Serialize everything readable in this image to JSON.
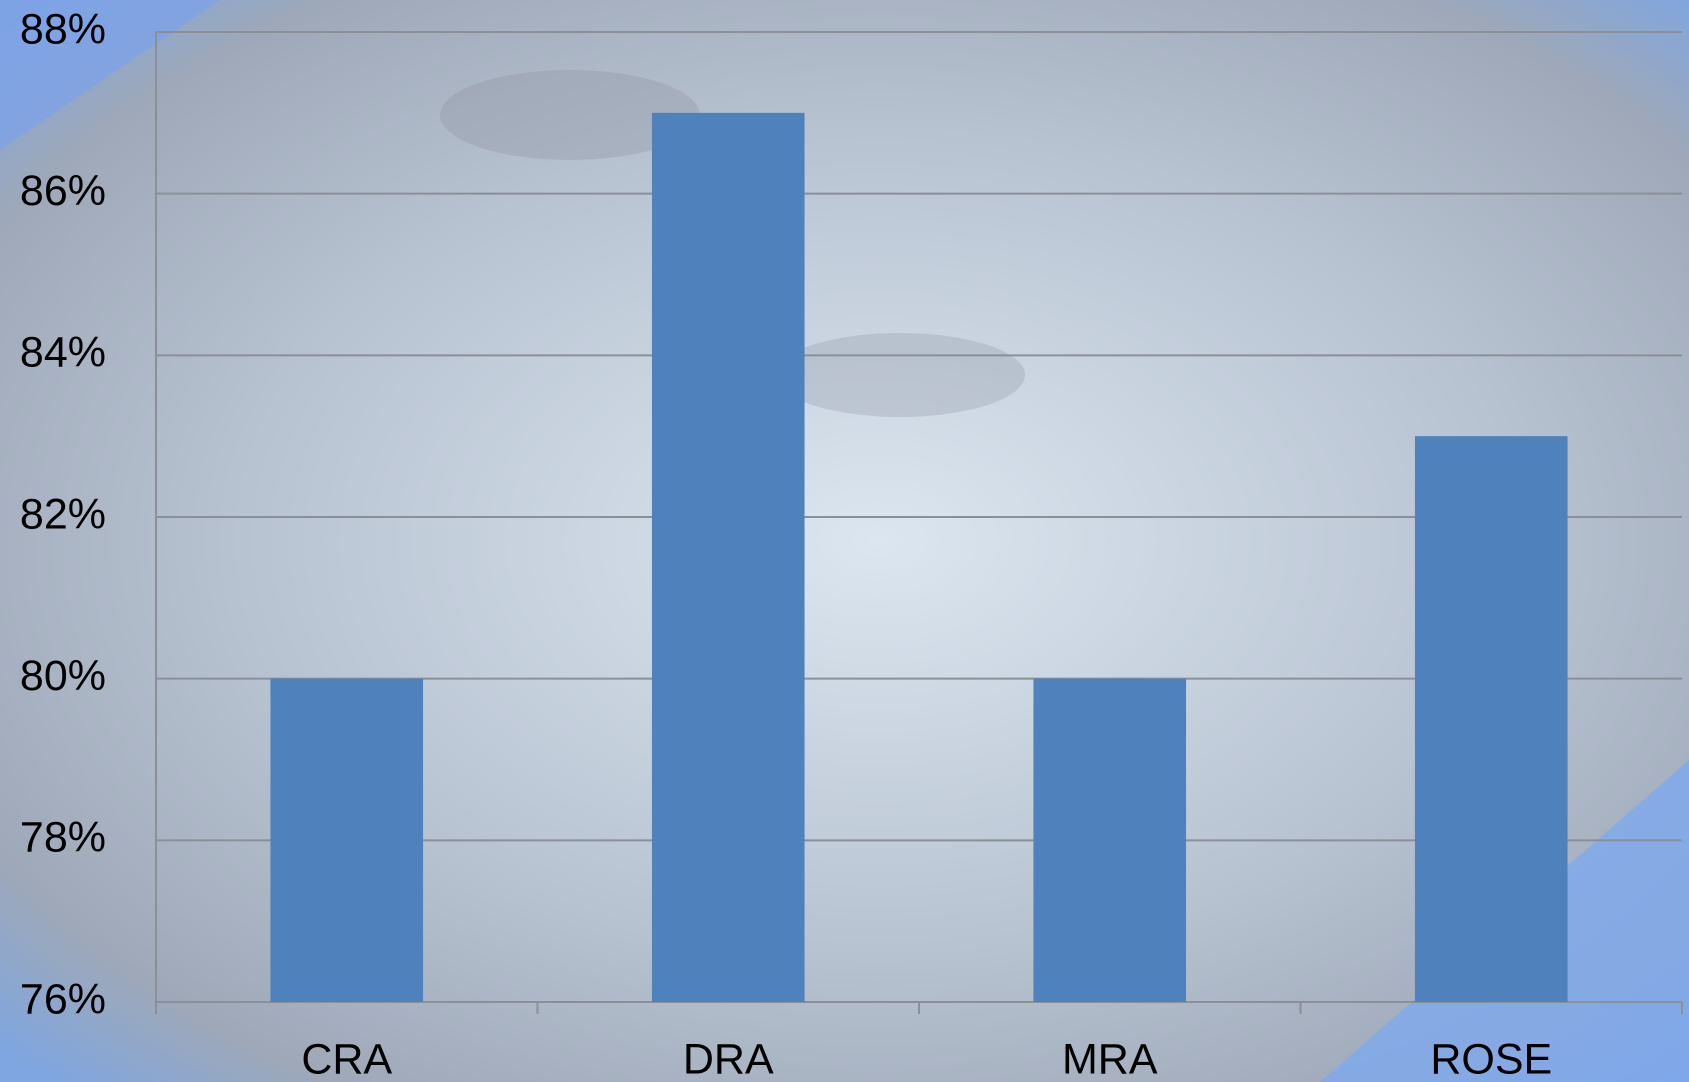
{
  "chart_data": {
    "type": "bar",
    "categories": [
      "CRA",
      "DRA",
      "MRA",
      "ROSE"
    ],
    "values": [
      80,
      87,
      80,
      83
    ],
    "color": "#4f81bd",
    "ylim": [
      76,
      88
    ],
    "yticks": [
      {
        "value": 76,
        "label": "76%"
      },
      {
        "value": 78,
        "label": "78%"
      },
      {
        "value": 80,
        "label": "80%"
      },
      {
        "value": 82,
        "label": "82%"
      },
      {
        "value": 84,
        "label": "84%"
      },
      {
        "value": 86,
        "label": "86%"
      },
      {
        "value": 88,
        "label": "88%"
      }
    ],
    "grid": true
  }
}
